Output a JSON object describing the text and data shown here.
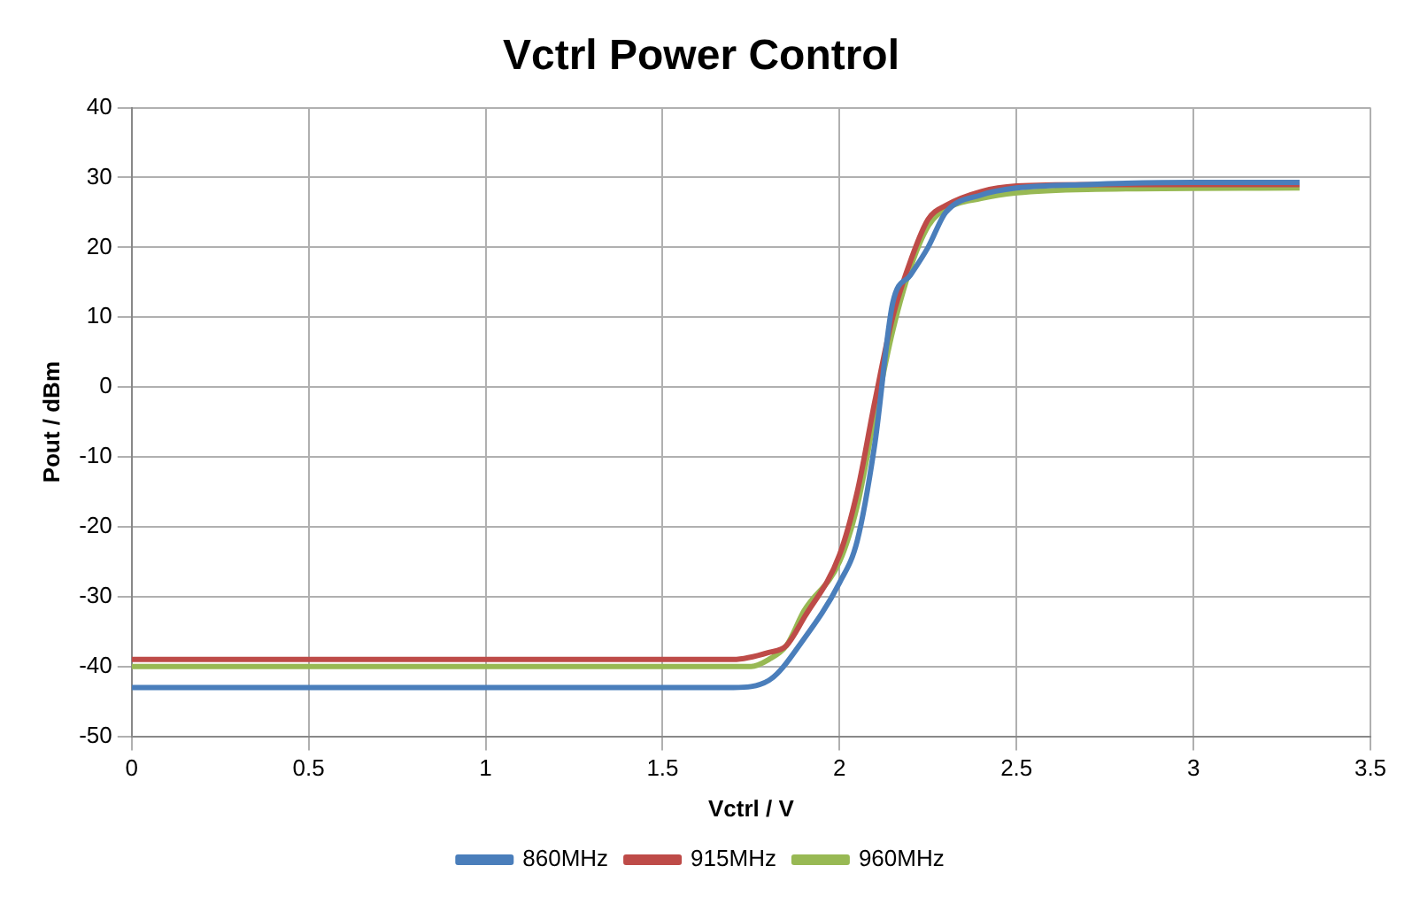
{
  "chart_data": {
    "type": "line",
    "title": "Vctrl Power Control",
    "xlabel": "Vctrl / V",
    "ylabel": "Pout / dBm",
    "xlim": [
      0,
      3.5
    ],
    "xticks": [
      0,
      0.5,
      1,
      1.5,
      2,
      2.5,
      3,
      3.5
    ],
    "ylim": [
      -50,
      40
    ],
    "yticks": [
      -50,
      -40,
      -30,
      -20,
      -10,
      0,
      10,
      20,
      30,
      40
    ],
    "grid": true,
    "legend": "bottom",
    "marker": "none",
    "line_style": "solid",
    "series": [
      {
        "name": "860MHz",
        "color": "#4a7ebb",
        "x": [
          0,
          1.7,
          1.8,
          1.9,
          2.0,
          2.05,
          2.1,
          2.15,
          2.2,
          2.25,
          2.3,
          2.4,
          2.5,
          2.7,
          3.0,
          3.3
        ],
        "values": [
          -43,
          -43,
          -42,
          -36,
          -28,
          -22,
          -8,
          12,
          16,
          20,
          25,
          27.5,
          28.5,
          29,
          29.3,
          29.3
        ]
      },
      {
        "name": "915MHz",
        "color": "#be4b48",
        "x": [
          0,
          1.7,
          1.8,
          1.85,
          1.9,
          2.0,
          2.05,
          2.1,
          2.15,
          2.2,
          2.25,
          2.3,
          2.4,
          2.5,
          2.7,
          3.3
        ],
        "values": [
          -39,
          -39,
          -38,
          -37,
          -33,
          -24,
          -15,
          -2,
          10,
          18,
          24,
          26,
          28,
          28.8,
          29,
          29
        ]
      },
      {
        "name": "960MHz",
        "color": "#98b954",
        "x": [
          0,
          1.75,
          1.8,
          1.85,
          1.9,
          2.0,
          2.05,
          2.1,
          2.15,
          2.2,
          2.25,
          2.3,
          2.4,
          2.5,
          2.7,
          3.3
        ],
        "values": [
          -40,
          -40,
          -39,
          -37,
          -32,
          -25,
          -17,
          -4,
          8,
          17,
          23,
          25.5,
          27,
          27.8,
          28.3,
          28.5
        ]
      }
    ]
  }
}
